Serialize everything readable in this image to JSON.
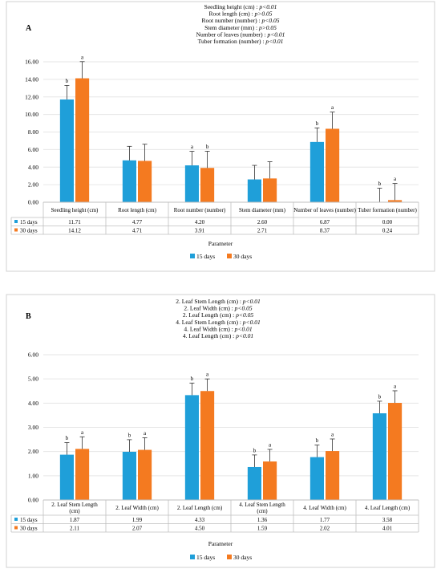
{
  "colors": {
    "d15": "#1f9fd9",
    "d30": "#f47a20"
  },
  "chart_data": [
    {
      "type": "bar",
      "panel_label": "A",
      "annotations": [
        "Seedling height (cm) : p<0.01",
        "Root length (cm) : p>0.05",
        "Root number (number) : p<0.05",
        "Stem diameter (mm) : p>0.05",
        "Number of leaves (number) : p<0.01",
        "Tuber formation (number) : p<0.01"
      ],
      "categories": [
        "Seedling height (cm)",
        "Root length (cm)",
        "Root number (number)",
        "Stem diameter (mm)",
        "Number of leaves (number)",
        "Tuber formation (number)"
      ],
      "series": [
        {
          "name": "15 days",
          "values": [
            11.71,
            4.77,
            4.2,
            2.6,
            6.87,
            0.0
          ],
          "errors": [
            1.6,
            1.6,
            1.6,
            1.6,
            1.6,
            1.6
          ],
          "letters": [
            "b",
            "",
            "a",
            "",
            "b",
            "b"
          ]
        },
        {
          "name": "30 days",
          "values": [
            14.12,
            4.71,
            3.91,
            2.71,
            8.37,
            0.24
          ],
          "errors": [
            1.9,
            1.9,
            1.9,
            1.9,
            1.9,
            1.9
          ],
          "letters": [
            "a",
            "",
            "b",
            "",
            "a",
            "a"
          ]
        }
      ],
      "table_values": [
        [
          "11.71",
          "4.77",
          "4.20",
          "2.60",
          "6.87",
          "0.00"
        ],
        [
          "14.12",
          "4.71",
          "3.91",
          "2.71",
          "8.37",
          "0.24"
        ]
      ],
      "ylim": [
        0,
        16
      ],
      "yticks": [
        "0.00",
        "2.00",
        "4.00",
        "6.00",
        "8.00",
        "10.00",
        "12.00",
        "14.00",
        "16.00"
      ],
      "xlabel": "Parameter",
      "legend": [
        "15 days",
        "30 days"
      ]
    },
    {
      "type": "bar",
      "panel_label": "B",
      "annotations": [
        "2. Leaf Stem Length (cm) : p<0.01",
        "2. Leaf Width (cm) : p<0.05",
        "2. Leaf Length (cm) : p<0.05",
        "4. Leaf Stem Length (cm) : p<0.01",
        "4. Leaf Width (cm) : p<0.01",
        "4. Leaf Length (cm) : p<0.01"
      ],
      "categories": [
        "2. Leaf Stem Length (cm)",
        "2. Leaf Width (cm)",
        "2. Leaf Length (cm)",
        "4. Leaf Stem Length (cm)",
        "4. Leaf Width (cm)",
        "4. Leaf Length (cm)"
      ],
      "series": [
        {
          "name": "15 days",
          "values": [
            1.87,
            1.99,
            4.33,
            1.36,
            1.77,
            3.58
          ],
          "errors": [
            0.5,
            0.5,
            0.5,
            0.5,
            0.5,
            0.5
          ],
          "letters": [
            "b",
            "b",
            "b",
            "b",
            "b",
            "b"
          ]
        },
        {
          "name": "30 days",
          "values": [
            2.11,
            2.07,
            4.5,
            1.59,
            2.02,
            4.01
          ],
          "errors": [
            0.5,
            0.5,
            0.5,
            0.5,
            0.5,
            0.5
          ],
          "letters": [
            "a",
            "a",
            "a",
            "a",
            "a",
            "a"
          ]
        }
      ],
      "table_values": [
        [
          "1.87",
          "1.99",
          "4.33",
          "1.36",
          "1.77",
          "3.58"
        ],
        [
          "2.11",
          "2.07",
          "4.50",
          "1.59",
          "2.02",
          "4.01"
        ]
      ],
      "ylim": [
        0,
        6
      ],
      "yticks": [
        "0.00",
        "1.00",
        "2.00",
        "3.00",
        "4.00",
        "5.00",
        "6.00"
      ],
      "xlabel": "Parameter",
      "legend": [
        "15 days",
        "30 days"
      ]
    }
  ]
}
